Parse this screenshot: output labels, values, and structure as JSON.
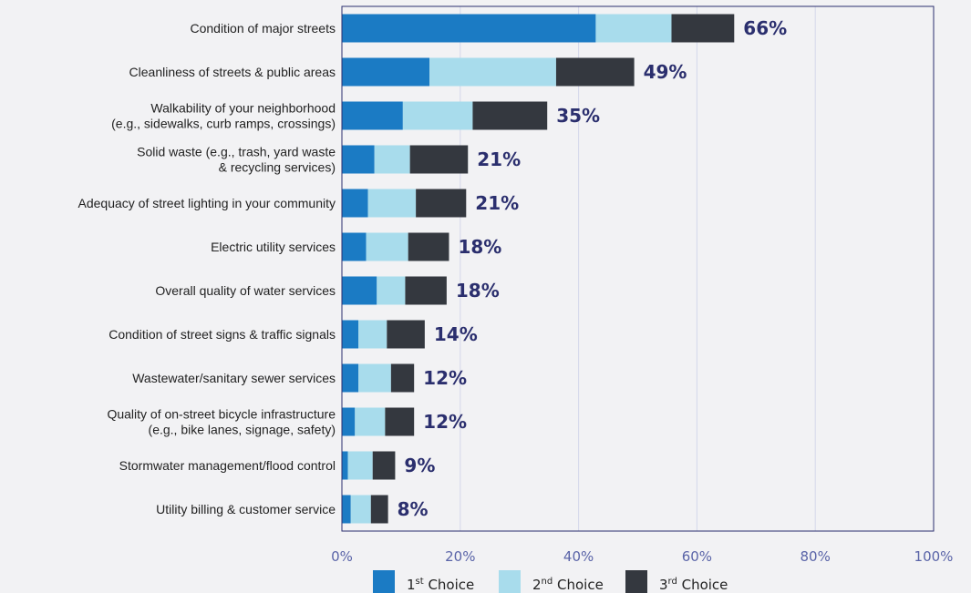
{
  "chart_data": {
    "type": "bar",
    "orientation": "horizontal",
    "stacked": true,
    "categories": [
      [
        "Condition of major streets"
      ],
      [
        "Cleanliness of streets & public areas"
      ],
      [
        "Walkability of your neighborhood",
        "(e.g., sidewalks, curb ramps, crossings)"
      ],
      [
        "Solid waste (e.g., trash, yard waste",
        "& recycling services)"
      ],
      [
        "Adequacy of street lighting in your community"
      ],
      [
        "Electric utility services"
      ],
      [
        "Overall quality of water services"
      ],
      [
        "Condition of street signs & traffic signals"
      ],
      [
        "Wastewater/sanitary sewer services"
      ],
      [
        "Quality of on-street bicycle infrastructure",
        "(e.g., bike lanes, signage, safety)"
      ],
      [
        "Stormwater management/flood control"
      ],
      [
        "Utility billing & customer service"
      ]
    ],
    "series": [
      {
        "name": "1st Choice",
        "name_base": "1",
        "name_sup": "st",
        "name_rest": " Choice",
        "color": "#1b7bc4",
        "values": [
          42.9,
          14.8,
          10.3,
          5.5,
          4.4,
          4.1,
          5.9,
          2.8,
          2.8,
          2.2,
          1.0,
          1.5
        ]
      },
      {
        "name": "2nd Choice",
        "name_base": "2",
        "name_sup": "nd",
        "name_rest": " Choice",
        "color": "#a8dcec",
        "values": [
          12.8,
          21.4,
          11.8,
          6.0,
          8.1,
          7.1,
          4.8,
          4.8,
          5.5,
          5.1,
          4.2,
          3.4
        ]
      },
      {
        "name": "3rd Choice",
        "name_base": "3",
        "name_sup": "rd",
        "name_rest": " Choice",
        "color": "#34383f",
        "values": [
          10.6,
          13.2,
          12.6,
          9.8,
          8.5,
          6.9,
          7.0,
          6.4,
          3.9,
          4.9,
          3.8,
          2.9
        ]
      }
    ],
    "totals": [
      "66%",
      "49%",
      "35%",
      "21%",
      "21%",
      "18%",
      "18%",
      "14%",
      "12%",
      "12%",
      "9%",
      "8%"
    ],
    "xlim": [
      0,
      100
    ],
    "xticks": [
      0,
      20,
      40,
      60,
      80,
      100
    ],
    "xtick_labels": [
      "0%",
      "20%",
      "40%",
      "60%",
      "80%",
      "100%"
    ],
    "grid": true,
    "legend": "bottom",
    "colors": {
      "frame": "#2b2f6e",
      "grid": "#d4d7ea",
      "total_label": "#2b2f6e",
      "tick_label": "#5a64a8"
    }
  }
}
